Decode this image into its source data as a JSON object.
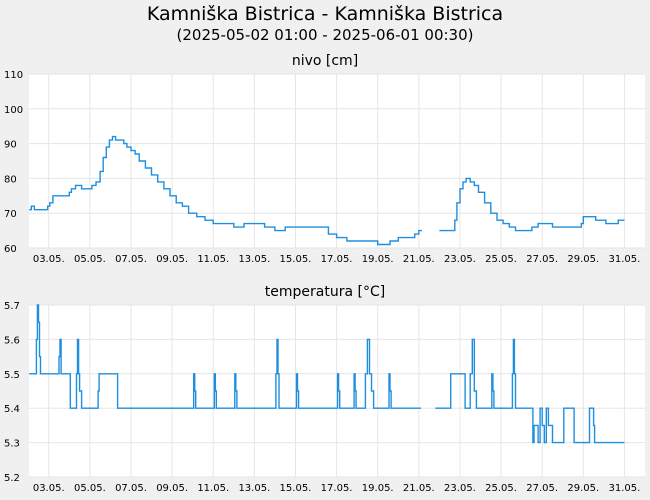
{
  "header": {
    "title": "Kamniška Bistrica - Kamniška Bistrica",
    "subtitle": "(2025-05-02 01:00 - 2025-06-01 00:30)"
  },
  "colors": {
    "background": "#f0f0f0",
    "plot_background": "#ffffff",
    "grid": "#e6e6e6",
    "line": "#1e8fe0"
  },
  "chart_data": [
    {
      "type": "line",
      "title": "nivo [cm]",
      "x_ticks": [
        "03.05.",
        "05.05.",
        "07.05.",
        "09.05.",
        "11.05.",
        "13.05.",
        "15.05.",
        "17.05.",
        "19.05.",
        "21.05.",
        "23.05.",
        "25.05.",
        "27.05.",
        "29.05.",
        "31.05."
      ],
      "x_tick_days": [
        3,
        5,
        7,
        9,
        11,
        13,
        15,
        17,
        19,
        21,
        23,
        25,
        27,
        29,
        31
      ],
      "xlim_days": [
        2.04,
        32.0
      ],
      "ylim": [
        60,
        110
      ],
      "y_ticks": [
        60,
        70,
        80,
        90,
        100,
        110
      ],
      "grid": true,
      "series": [
        {
          "segments": [
            [
              [
                2.05,
                71
              ],
              [
                2.15,
                72
              ],
              [
                2.3,
                71
              ],
              [
                2.6,
                71
              ],
              [
                2.85,
                71
              ],
              [
                2.95,
                72
              ],
              [
                3.05,
                73
              ],
              [
                3.2,
                75
              ],
              [
                3.5,
                75
              ],
              [
                3.9,
                75
              ],
              [
                4.0,
                76
              ],
              [
                4.1,
                77
              ],
              [
                4.3,
                78
              ],
              [
                4.6,
                77
              ],
              [
                5.0,
                77
              ],
              [
                5.1,
                78
              ],
              [
                5.3,
                79
              ],
              [
                5.5,
                82
              ],
              [
                5.65,
                86
              ],
              [
                5.8,
                89
              ],
              [
                5.95,
                91
              ],
              [
                6.1,
                92
              ],
              [
                6.25,
                91
              ],
              [
                6.5,
                91
              ],
              [
                6.65,
                90
              ],
              [
                6.8,
                89
              ],
              [
                7.0,
                88
              ],
              [
                7.2,
                87
              ],
              [
                7.4,
                85
              ],
              [
                7.7,
                83
              ],
              [
                8.0,
                81
              ],
              [
                8.3,
                79
              ],
              [
                8.6,
                77
              ],
              [
                8.9,
                75
              ],
              [
                9.2,
                73
              ],
              [
                9.5,
                72
              ],
              [
                9.8,
                70
              ],
              [
                10.2,
                69
              ],
              [
                10.6,
                68
              ],
              [
                11.0,
                67
              ],
              [
                11.5,
                67
              ],
              [
                12.0,
                66
              ],
              [
                12.5,
                67
              ],
              [
                13.0,
                67
              ],
              [
                13.5,
                66
              ],
              [
                14.0,
                65
              ],
              [
                14.4,
                65
              ],
              [
                14.5,
                66
              ],
              [
                15.0,
                66
              ],
              [
                15.5,
                66
              ],
              [
                16.0,
                66
              ],
              [
                16.4,
                66
              ],
              [
                16.6,
                64
              ],
              [
                17.0,
                63
              ],
              [
                17.5,
                62
              ],
              [
                18.0,
                62
              ],
              [
                18.5,
                62
              ],
              [
                19.0,
                61
              ],
              [
                19.4,
                61
              ],
              [
                19.6,
                62
              ],
              [
                20.0,
                63
              ],
              [
                20.4,
                63
              ],
              [
                20.8,
                64
              ],
              [
                21.0,
                65
              ],
              [
                21.15,
                65
              ]
            ],
            [
              [
                22.0,
                65
              ],
              [
                22.5,
                65
              ],
              [
                22.65,
                65
              ],
              [
                22.75,
                68
              ],
              [
                22.85,
                73
              ],
              [
                23.0,
                77
              ],
              [
                23.15,
                79
              ],
              [
                23.3,
                80
              ],
              [
                23.5,
                79
              ],
              [
                23.7,
                78
              ],
              [
                23.9,
                76
              ],
              [
                24.2,
                73
              ],
              [
                24.5,
                70
              ],
              [
                24.8,
                68
              ],
              [
                25.1,
                67
              ],
              [
                25.4,
                66
              ],
              [
                25.7,
                65
              ],
              [
                26.0,
                65
              ],
              [
                26.3,
                65
              ],
              [
                26.5,
                66
              ],
              [
                26.8,
                67
              ],
              [
                27.2,
                67
              ],
              [
                27.5,
                66
              ],
              [
                28.0,
                66
              ],
              [
                28.5,
                66
              ],
              [
                28.9,
                67
              ],
              [
                29.0,
                69
              ],
              [
                29.3,
                69
              ],
              [
                29.6,
                68
              ],
              [
                29.9,
                68
              ],
              [
                30.1,
                67
              ],
              [
                30.5,
                67
              ],
              [
                30.7,
                68
              ],
              [
                31.0,
                68
              ]
            ]
          ]
        }
      ]
    },
    {
      "type": "line",
      "title": "temperatura [°C]",
      "x_ticks": [
        "03.05.",
        "05.05.",
        "07.05.",
        "09.05.",
        "11.05.",
        "13.05.",
        "15.05.",
        "17.05.",
        "19.05.",
        "21.05.",
        "23.05.",
        "25.05.",
        "27.05.",
        "29.05.",
        "31.05."
      ],
      "x_tick_days": [
        3,
        5,
        7,
        9,
        11,
        13,
        15,
        17,
        19,
        21,
        23,
        25,
        27,
        29,
        31
      ],
      "xlim_days": [
        2.04,
        32.0
      ],
      "ylim": [
        5.2,
        5.7
      ],
      "y_ticks": [
        5.2,
        5.3,
        5.4,
        5.5,
        5.6,
        5.7
      ],
      "grid": true,
      "series": [
        {
          "segments": [
            [
              [
                2.05,
                5.5
              ],
              [
                2.35,
                5.5
              ],
              [
                2.4,
                5.6
              ],
              [
                2.45,
                5.7
              ],
              [
                2.5,
                5.65
              ],
              [
                2.55,
                5.55
              ],
              [
                2.6,
                5.5
              ],
              [
                3.0,
                5.5
              ],
              [
                3.4,
                5.5
              ],
              [
                3.5,
                5.55
              ],
              [
                3.55,
                5.6
              ],
              [
                3.6,
                5.5
              ],
              [
                4.0,
                5.5
              ],
              [
                4.05,
                5.4
              ],
              [
                4.3,
                5.4
              ],
              [
                4.35,
                5.5
              ],
              [
                4.4,
                5.6
              ],
              [
                4.45,
                5.5
              ],
              [
                4.5,
                5.45
              ],
              [
                4.6,
                5.4
              ],
              [
                5.0,
                5.4
              ],
              [
                5.3,
                5.4
              ],
              [
                5.4,
                5.45
              ],
              [
                5.45,
                5.5
              ],
              [
                6.0,
                5.5
              ],
              [
                6.3,
                5.5
              ],
              [
                6.35,
                5.4
              ],
              [
                7.0,
                5.4
              ],
              [
                8.0,
                5.4
              ],
              [
                9.0,
                5.4
              ],
              [
                10.0,
                5.4
              ],
              [
                10.05,
                5.5
              ],
              [
                10.1,
                5.45
              ],
              [
                10.15,
                5.4
              ],
              [
                11.0,
                5.4
              ],
              [
                11.05,
                5.5
              ],
              [
                11.1,
                5.45
              ],
              [
                11.15,
                5.4
              ],
              [
                12.0,
                5.4
              ],
              [
                12.05,
                5.5
              ],
              [
                12.1,
                5.45
              ],
              [
                12.15,
                5.4
              ],
              [
                13.0,
                5.4
              ],
              [
                14.0,
                5.4
              ],
              [
                14.05,
                5.5
              ],
              [
                14.1,
                5.6
              ],
              [
                14.15,
                5.5
              ],
              [
                14.2,
                5.4
              ],
              [
                15.0,
                5.4
              ],
              [
                15.05,
                5.5
              ],
              [
                15.1,
                5.45
              ],
              [
                15.15,
                5.4
              ],
              [
                16.0,
                5.4
              ],
              [
                17.0,
                5.4
              ],
              [
                17.05,
                5.5
              ],
              [
                17.1,
                5.45
              ],
              [
                17.15,
                5.4
              ],
              [
                17.8,
                5.4
              ],
              [
                17.85,
                5.5
              ],
              [
                17.9,
                5.45
              ],
              [
                17.95,
                5.4
              ],
              [
                18.3,
                5.4
              ],
              [
                18.4,
                5.5
              ],
              [
                18.5,
                5.6
              ],
              [
                18.6,
                5.5
              ],
              [
                18.7,
                5.45
              ],
              [
                18.8,
                5.4
              ],
              [
                19.5,
                5.4
              ],
              [
                19.55,
                5.5
              ],
              [
                19.6,
                5.45
              ],
              [
                19.65,
                5.4
              ],
              [
                20.0,
                5.4
              ],
              [
                21.1,
                5.4
              ]
            ],
            [
              [
                21.8,
                5.4
              ],
              [
                22.5,
                5.4
              ],
              [
                22.55,
                5.5
              ],
              [
                23.0,
                5.5
              ],
              [
                23.2,
                5.5
              ],
              [
                23.25,
                5.4
              ],
              [
                23.4,
                5.4
              ],
              [
                23.5,
                5.5
              ],
              [
                23.6,
                5.6
              ],
              [
                23.7,
                5.45
              ],
              [
                23.8,
                5.4
              ],
              [
                24.5,
                5.4
              ],
              [
                24.55,
                5.5
              ],
              [
                24.6,
                5.45
              ],
              [
                24.65,
                5.4
              ],
              [
                25.0,
                5.4
              ],
              [
                25.5,
                5.4
              ],
              [
                25.55,
                5.5
              ],
              [
                25.6,
                5.6
              ],
              [
                25.65,
                5.5
              ],
              [
                25.7,
                5.4
              ],
              [
                26.0,
                5.4
              ],
              [
                26.5,
                5.4
              ],
              [
                26.55,
                5.3
              ],
              [
                26.6,
                5.35
              ],
              [
                26.8,
                5.3
              ],
              [
                26.9,
                5.4
              ],
              [
                27.0,
                5.35
              ],
              [
                27.1,
                5.3
              ],
              [
                27.2,
                5.4
              ],
              [
                27.3,
                5.35
              ],
              [
                27.5,
                5.3
              ],
              [
                27.8,
                5.3
              ],
              [
                28.0,
                5.3
              ],
              [
                28.05,
                5.4
              ],
              [
                28.5,
                5.4
              ],
              [
                28.55,
                5.3
              ],
              [
                29.0,
                5.3
              ],
              [
                29.2,
                5.3
              ],
              [
                29.3,
                5.4
              ],
              [
                29.5,
                5.35
              ],
              [
                29.55,
                5.3
              ],
              [
                30.5,
                5.3
              ],
              [
                31.0,
                5.3
              ]
            ]
          ]
        }
      ]
    }
  ]
}
